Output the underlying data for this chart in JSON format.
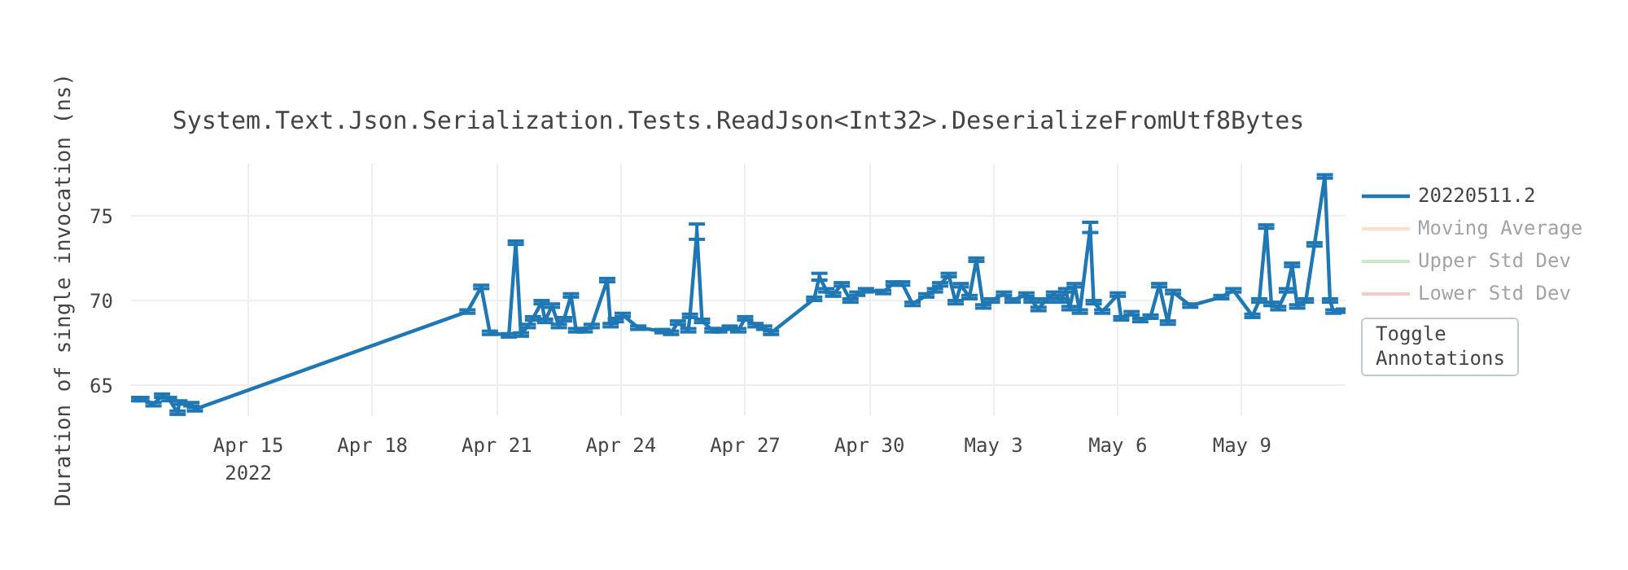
{
  "chart_data": {
    "type": "line",
    "title": "System.Text.Json.Serialization.Tests.ReadJson<Int32>.DeserializeFromUtf8Bytes",
    "ylabel": "Duration of single invocation (ns)",
    "x": [
      "2022-04-12T06:00",
      "2022-04-12T10:00",
      "2022-04-12T17:00",
      "2022-04-12T22:00",
      "2022-04-13T02:00",
      "2022-04-13T07:00",
      "2022-04-13T08:00",
      "2022-04-13T15:00",
      "2022-04-13T17:00",
      "2022-04-20T07:00",
      "2022-04-20T15:00",
      "2022-04-20T20:00",
      "2022-04-21T07:00",
      "2022-04-21T11:00",
      "2022-04-21T14:00",
      "2022-04-21T18:00",
      "2022-04-21T21:00",
      "2022-04-22T02:00",
      "2022-04-22T04:00",
      "2022-04-22T08:00",
      "2022-04-22T12:00",
      "2022-04-22T15:00",
      "2022-04-22T19:00",
      "2022-04-22T22:00",
      "2022-04-23T03:00",
      "2022-04-23T07:00",
      "2022-04-23T16:00",
      "2022-04-23T18:00",
      "2022-04-23T21:00",
      "2022-04-24T01:00",
      "2022-04-24T10:00",
      "2022-04-25T00:00",
      "2022-04-25T05:00",
      "2022-04-25T09:00",
      "2022-04-25T15:00",
      "2022-04-25T16:00",
      "2022-04-25T20:00",
      "2022-04-25T23:00",
      "2022-04-26T05:00",
      "2022-04-26T09:00",
      "2022-04-26T15:00",
      "2022-04-26T20:00",
      "2022-04-27T00:00",
      "2022-04-27T06:00",
      "2022-04-27T11:00",
      "2022-04-27T15:00",
      "2022-04-28T16:00",
      "2022-04-28T19:00",
      "2022-04-28T23:00",
      "2022-04-29T03:00",
      "2022-04-29T08:00",
      "2022-04-29T13:00",
      "2022-04-29T17:00",
      "2022-04-29T22:00",
      "2022-04-30T08:00",
      "2022-04-30T14:00",
      "2022-04-30T19:00",
      "2022-05-01T01:00",
      "2022-05-01T09:00",
      "2022-05-01T14:00",
      "2022-05-01T17:00",
      "2022-05-01T22:00",
      "2022-05-02T02:00",
      "2022-05-02T05:00",
      "2022-05-02T10:00",
      "2022-05-02T14:00",
      "2022-05-02T18:00",
      "2022-05-02T23:00",
      "2022-05-03T06:00",
      "2022-05-03T11:00",
      "2022-05-03T19:00",
      "2022-05-03T22:00",
      "2022-05-04T02:00",
      "2022-05-04T06:00",
      "2022-05-04T11:00",
      "2022-05-04T15:00",
      "2022-05-04T18:00",
      "2022-05-04T20:00",
      "2022-05-04T23:00",
      "2022-05-05T02:00",
      "2022-05-05T08:00",
      "2022-05-05T10:00",
      "2022-05-05T15:00",
      "2022-05-06T00:00",
      "2022-05-06T02:00",
      "2022-05-06T08:00",
      "2022-05-06T13:00",
      "2022-05-06T19:00",
      "2022-05-07T00:00",
      "2022-05-07T05:00",
      "2022-05-07T08:00",
      "2022-05-07T18:00",
      "2022-05-08T12:00",
      "2022-05-08T19:00",
      "2022-05-09T06:00",
      "2022-05-09T10:00",
      "2022-05-09T14:00",
      "2022-05-09T17:00",
      "2022-05-09T21:00",
      "2022-05-10T02:00",
      "2022-05-10T05:00",
      "2022-05-10T08:00",
      "2022-05-10T13:00",
      "2022-05-10T18:00",
      "2022-05-11T00:00",
      "2022-05-11T03:00",
      "2022-05-11T05:00",
      "2022-05-11T11:00"
    ],
    "series": [
      {
        "name": "20220511.2",
        "color": "#1f77b4",
        "values": [
          64.2,
          64.2,
          63.9,
          64.4,
          64.2,
          63.4,
          64.0,
          63.9,
          63.6,
          69.35,
          70.8,
          68.1,
          67.95,
          73.4,
          68.0,
          68.5,
          68.95,
          69.9,
          68.8,
          69.7,
          68.5,
          68.9,
          70.3,
          68.25,
          68.25,
          68.5,
          71.2,
          68.55,
          68.85,
          69.15,
          68.4,
          68.2,
          68.1,
          68.7,
          68.25,
          69.1,
          74.05,
          68.8,
          68.25,
          68.25,
          68.4,
          68.25,
          68.95,
          68.55,
          68.4,
          68.1,
          70.1,
          71.4,
          70.6,
          70.35,
          70.95,
          70.0,
          70.4,
          70.6,
          70.5,
          71.0,
          71.0,
          69.8,
          70.3,
          70.6,
          70.95,
          71.5,
          69.9,
          70.9,
          70.2,
          72.4,
          69.65,
          70.0,
          70.4,
          70.0,
          70.35,
          70.0,
          69.5,
          70.0,
          70.4,
          70.0,
          70.6,
          69.55,
          70.9,
          69.35,
          74.3,
          69.9,
          69.35,
          70.35,
          68.95,
          69.25,
          68.85,
          69.05,
          70.9,
          68.7,
          70.5,
          69.7,
          70.2,
          70.6,
          69.1,
          70.0,
          74.35,
          69.8,
          69.55,
          70.6,
          72.1,
          69.65,
          70.0,
          73.3,
          77.3,
          70.0,
          69.35,
          69.4
        ],
        "errors": [
          0.1,
          0.1,
          0.1,
          0.1,
          0.1,
          0.1,
          0.1,
          0.1,
          0.1,
          0.1,
          0.1,
          0.1,
          0.1,
          0.1,
          0.1,
          0.1,
          0.1,
          0.1,
          0.1,
          0.1,
          0.1,
          0.1,
          0.1,
          0.1,
          0.1,
          0.1,
          0.1,
          0.1,
          0.1,
          0.1,
          0.1,
          0.1,
          0.1,
          0.1,
          0.1,
          0.1,
          0.45,
          0.1,
          0.1,
          0.1,
          0.1,
          0.1,
          0.1,
          0.1,
          0.1,
          0.1,
          0.1,
          0.2,
          0.1,
          0.1,
          0.1,
          0.1,
          0.1,
          0.1,
          0.1,
          0.1,
          0.1,
          0.1,
          0.1,
          0.1,
          0.1,
          0.1,
          0.1,
          0.1,
          0.1,
          0.1,
          0.1,
          0.1,
          0.1,
          0.1,
          0.1,
          0.1,
          0.1,
          0.1,
          0.1,
          0.1,
          0.1,
          0.1,
          0.1,
          0.1,
          0.3,
          0.1,
          0.1,
          0.1,
          0.1,
          0.1,
          0.1,
          0.1,
          0.1,
          0.1,
          0.1,
          0.1,
          0.1,
          0.1,
          0.1,
          0.1,
          0.1,
          0.1,
          0.1,
          0.1,
          0.1,
          0.1,
          0.1,
          0.1,
          0.1,
          0.1,
          0.1,
          0.1
        ]
      },
      {
        "name": "Moving Average",
        "color": "#ff7f0e",
        "values": [
          null,
          null,
          null,
          null,
          null,
          null,
          null,
          null,
          null,
          null,
          null,
          null,
          null,
          null,
          null,
          null,
          null,
          null,
          null,
          null,
          null,
          null,
          null,
          null,
          null,
          null,
          null,
          null,
          null,
          null,
          null,
          null,
          null,
          null,
          null,
          null,
          null,
          null,
          null,
          null,
          null,
          null,
          null,
          null,
          null,
          null,
          null,
          null,
          null,
          null,
          null,
          null,
          null,
          null,
          null,
          null,
          null,
          null,
          null,
          null,
          null,
          null,
          null,
          null,
          null,
          null,
          null,
          null,
          null,
          null,
          null,
          null,
          null,
          null,
          null,
          null,
          null,
          null,
          null,
          null,
          null,
          null,
          null,
          null,
          null,
          null,
          null,
          null,
          null,
          null,
          null,
          null,
          null,
          null,
          null,
          null,
          null,
          null,
          null,
          null,
          null,
          null,
          null,
          null,
          null,
          null,
          null,
          null
        ]
      },
      {
        "name": "Upper Std Dev",
        "color": "#2ca02c",
        "values": [
          null,
          null,
          null,
          null,
          null,
          null,
          null,
          null,
          null,
          null,
          null,
          null,
          null,
          null,
          null,
          null,
          null,
          null,
          null,
          null,
          null,
          null,
          null,
          null,
          null,
          null,
          null,
          null,
          null,
          null,
          null,
          null,
          null,
          null,
          null,
          null,
          null,
          null,
          null,
          null,
          null,
          null,
          null,
          null,
          null,
          null,
          null,
          null,
          null,
          null,
          null,
          null,
          null,
          null,
          null,
          null,
          null,
          null,
          null,
          null,
          null,
          null,
          null,
          null,
          null,
          null,
          null,
          null,
          null,
          null,
          null,
          null,
          null,
          null,
          null,
          null,
          null,
          null,
          null,
          null,
          null,
          null,
          null,
          null,
          null,
          null,
          null,
          null,
          null,
          null,
          null,
          null,
          null,
          null,
          null,
          null,
          null,
          null,
          null,
          null,
          null,
          null,
          null,
          null,
          null,
          null,
          null,
          null
        ]
      },
      {
        "name": "Lower Std Dev",
        "color": "#d62728",
        "values": [
          null,
          null,
          null,
          null,
          null,
          null,
          null,
          null,
          null,
          null,
          null,
          null,
          null,
          null,
          null,
          null,
          null,
          null,
          null,
          null,
          null,
          null,
          null,
          null,
          null,
          null,
          null,
          null,
          null,
          null,
          null,
          null,
          null,
          null,
          null,
          null,
          null,
          null,
          null,
          null,
          null,
          null,
          null,
          null,
          null,
          null,
          null,
          null,
          null,
          null,
          null,
          null,
          null,
          null,
          null,
          null,
          null,
          null,
          null,
          null,
          null,
          null,
          null,
          null,
          null,
          null,
          null,
          null,
          null,
          null,
          null,
          null,
          null,
          null,
          null,
          null,
          null,
          null,
          null,
          null,
          null,
          null,
          null,
          null,
          null,
          null,
          null,
          null,
          null,
          null,
          null,
          null,
          null,
          null,
          null,
          null,
          null,
          null,
          null,
          null,
          null,
          null,
          null,
          null,
          null,
          null,
          null,
          null
        ]
      }
    ],
    "xlim": [
      "2022-04-12T04:00",
      "2022-05-11T12:00"
    ],
    "xticks": [
      {
        "value": "2022-04-15",
        "label": "Apr 15\n2022"
      },
      {
        "value": "2022-04-18",
        "label": "Apr 18"
      },
      {
        "value": "2022-04-21",
        "label": "Apr 21"
      },
      {
        "value": "2022-04-24",
        "label": "Apr 24"
      },
      {
        "value": "2022-04-27",
        "label": "Apr 27"
      },
      {
        "value": "2022-04-30",
        "label": "Apr 30"
      },
      {
        "value": "2022-05-03",
        "label": "May 3"
      },
      {
        "value": "2022-05-06",
        "label": "May 6"
      },
      {
        "value": "2022-05-09",
        "label": "May 9"
      }
    ],
    "ylim": [
      63.2,
      78.05
    ],
    "yticks": [
      65,
      70,
      75
    ],
    "grid": true,
    "legend": "top right",
    "line_style": "solid",
    "annotations": [
      "Toggle\nAnnotations"
    ]
  }
}
